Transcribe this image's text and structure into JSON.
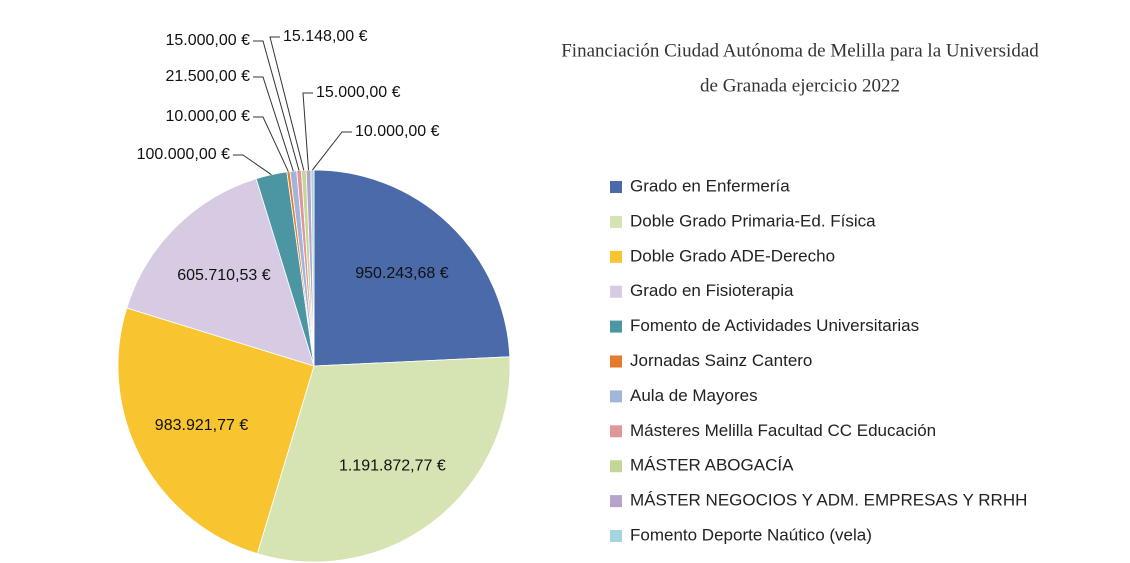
{
  "chart_data": {
    "type": "pie",
    "title_lines": [
      "Financiación Ciudad Autónoma de Melilla para la Universidad",
      "de Granada ejercicio 2022"
    ],
    "categories": [
      "Grado en Enfermería",
      "Doble Grado Primaria-Ed. Física",
      "Doble Grado ADE-Derecho",
      "Grado en Fisioterapia",
      "Fomento de Actividades Universitarias",
      "Jornadas Sainz Cantero",
      "Aula de Mayores",
      "Másteres Melilla Facultad CC Educación",
      "MÁSTER ABOGACÍA",
      "MÁSTER NEGOCIOS  Y ADM. EMPRESAS Y RRHH",
      "Fomento Deporte Naútico (vela)"
    ],
    "values": [
      950243.68,
      1191872.77,
      983921.77,
      605710.53,
      100000,
      10000,
      21500,
      15000,
      15148,
      15000,
      10000
    ],
    "value_labels": [
      "950.243,68 €",
      "1.191.872,77 €",
      "983.921,77 €",
      "605.710,53 €",
      "100.000,00 €",
      "10.000,00 €",
      "21.500,00 €",
      "15.000,00 €",
      "15.148,00 €",
      "15.000,00 €",
      "10.000,00 €"
    ],
    "colors": [
      "#4a6aa9",
      "#d6e3b3",
      "#f8c531",
      "#d7cbe3",
      "#4b96a2",
      "#e67b2e",
      "#a0b5d9",
      "#de9897",
      "#c3d799",
      "#b6a3cb",
      "#a6d3dc"
    ],
    "legend": "right"
  }
}
